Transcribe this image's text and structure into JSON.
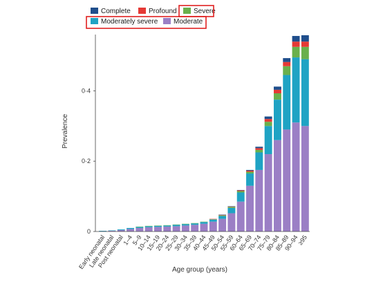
{
  "chart_data": {
    "type": "bar",
    "stacked": true,
    "xlabel": "Age group (years)",
    "ylabel": "Prevalence",
    "ylim": [
      0,
      0.56
    ],
    "yticks": [
      {
        "value": 0,
        "label": "0"
      },
      {
        "value": 0.2,
        "label": "0·2"
      },
      {
        "value": 0.4,
        "label": "0·4"
      }
    ],
    "grid": false,
    "legend_position": "top-left",
    "categories": [
      "Early neonatal",
      "Late neonatal",
      "Post neonatal",
      "1–4",
      "5–9",
      "10–14",
      "15–19",
      "20–24",
      "25–29",
      "30–34",
      "35–39",
      "40–44",
      "45–49",
      "50–54",
      "55–59",
      "60–64",
      "65–69",
      "70–74",
      "75–79",
      "80–84",
      "85–89",
      "90–94",
      "≥95"
    ],
    "series": [
      {
        "name": "Moderate",
        "color": "#9b7fc5",
        "values": [
          0.001,
          0.002,
          0.004,
          0.007,
          0.01,
          0.012,
          0.013,
          0.014,
          0.015,
          0.017,
          0.019,
          0.022,
          0.028,
          0.036,
          0.052,
          0.085,
          0.13,
          0.175,
          0.22,
          0.26,
          0.29,
          0.31,
          0.3
        ]
      },
      {
        "name": "Moderately severe",
        "color": "#1fa3c4",
        "values": [
          0.001,
          0.001,
          0.002,
          0.003,
          0.003,
          0.003,
          0.003,
          0.003,
          0.004,
          0.004,
          0.004,
          0.005,
          0.006,
          0.008,
          0.015,
          0.026,
          0.035,
          0.05,
          0.08,
          0.115,
          0.155,
          0.185,
          0.19
        ]
      },
      {
        "name": "Severe",
        "color": "#6ab04c",
        "values": [
          0,
          0,
          0,
          0,
          0.001,
          0.001,
          0.001,
          0.001,
          0.001,
          0.001,
          0.001,
          0.001,
          0.001,
          0.002,
          0.003,
          0.004,
          0.005,
          0.007,
          0.012,
          0.018,
          0.025,
          0.03,
          0.035
        ]
      },
      {
        "name": "Profound",
        "color": "#e53935",
        "values": [
          0,
          0,
          0,
          0,
          0,
          0,
          0,
          0,
          0,
          0,
          0,
          0,
          0.001,
          0.001,
          0.001,
          0.002,
          0.003,
          0.005,
          0.008,
          0.01,
          0.012,
          0.015,
          0.015
        ]
      },
      {
        "name": "Complete",
        "color": "#1f4e8c",
        "values": [
          0,
          0,
          0,
          0,
          0,
          0,
          0,
          0,
          0,
          0,
          0,
          0,
          0,
          0.001,
          0.001,
          0.001,
          0.002,
          0.004,
          0.007,
          0.009,
          0.011,
          0.016,
          0.018
        ]
      }
    ],
    "legend": [
      {
        "name": "Complete",
        "color": "#1f4e8c",
        "highlighted": false
      },
      {
        "name": "Profound",
        "color": "#e53935",
        "highlighted": false
      },
      {
        "name": "Severe",
        "color": "#6ab04c",
        "highlighted": true
      },
      {
        "name": "Moderately severe",
        "color": "#1fa3c4",
        "highlighted": true
      },
      {
        "name": "Moderate",
        "color": "#9b7fc5",
        "highlighted": true
      }
    ],
    "highlight_color": "#e02020"
  }
}
